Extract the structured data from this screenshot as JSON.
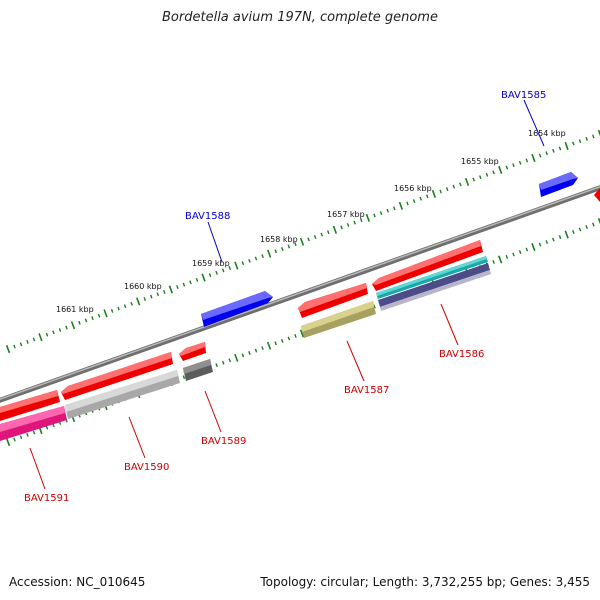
{
  "title": "Bordetella avium 197N, complete genome",
  "accession": "Accession: NC_010645",
  "summary": "Topology: circular; Length: 3,732,255 bp; Genes: 3,455",
  "colors": {
    "backbone": "#8a8a8a",
    "tick": "#1a7f1a",
    "forward_gene": "#0000ee",
    "reverse_gene": "#ee0000",
    "forward_label": "#0000cc",
    "reverse_label": "#cc0000"
  },
  "scale_labels": [
    "1654 kbp",
    "1655 kbp",
    "1656 kbp",
    "1657 kbp",
    "1658 kbp",
    "1659 kbp",
    "1660 kbp",
    "1661 kbp"
  ],
  "gene_labels": [
    {
      "id": "BAV1585",
      "strand": "forward"
    },
    {
      "id": "BAV1588",
      "strand": "forward"
    },
    {
      "id": "BAV1586",
      "strand": "reverse"
    },
    {
      "id": "BAV1587",
      "strand": "reverse"
    },
    {
      "id": "BAV1589",
      "strand": "reverse"
    },
    {
      "id": "BAV1590",
      "strand": "reverse"
    },
    {
      "id": "BAV1591",
      "strand": "reverse"
    }
  ]
}
